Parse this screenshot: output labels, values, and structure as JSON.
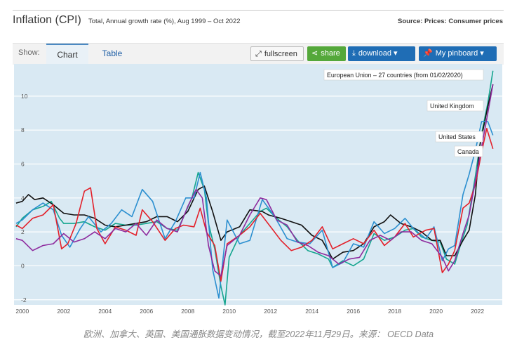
{
  "header": {
    "title": "Inflation (CPI)",
    "subtitle": "Total, Annual growth rate (%), Aug 1999 – Oct 2022",
    "source": "Source: Prices: Consumer prices"
  },
  "toolbar": {
    "show_label": "Show:",
    "tabs": [
      "Chart",
      "Table"
    ],
    "fullscreen_label": "fullscreen",
    "share_label": "share",
    "download_label": "download ▾",
    "pinboard_label": "My pinboard ▾"
  },
  "caption": "欧洲、加拿大、英国、美国通胀数据变动情况，截至2022年11月29日。来源： OECD Data",
  "colors": {
    "plot_bg": "#d9e9f3",
    "grid": "#ffffff",
    "eu": "#15a58f",
    "uk": "#111111",
    "us": "#2b8fd0",
    "canada": "#e3202a",
    "purple": "#8e2b9e"
  },
  "chart_data": {
    "type": "line",
    "x_ticks": [
      "2000",
      "2002",
      "2004",
      "2006",
      "2008",
      "2010",
      "2012",
      "2014",
      "2016",
      "2018",
      "2020",
      "2022"
    ],
    "y_ticks": [
      "-2",
      "0",
      "2",
      "4",
      "6",
      "8",
      "10"
    ],
    "xlim": [
      1999.6,
      2023.2
    ],
    "ylim": [
      -2.3,
      11.9
    ],
    "grid": true,
    "series": [
      {
        "name": "European Union – 27 countries (from 01/02/2020)",
        "color": "#15a58f",
        "x": [
          1999.7,
          2000.0,
          2000.5,
          2001.0,
          2001.4,
          2001.8,
          2002.0,
          2002.5,
          2003.0,
          2003.5,
          2004.0,
          2004.5,
          2005.0,
          2005.5,
          2006.0,
          2006.5,
          2007.0,
          2007.5,
          2007.8,
          2008.2,
          2008.5,
          2008.8,
          2009.0,
          2009.3,
          2009.6,
          2009.8,
          2010.0,
          2010.5,
          2011.0,
          2011.5,
          2011.8,
          2012.3,
          2012.8,
          2013.3,
          2013.8,
          2014.3,
          2014.8,
          2015.0,
          2015.5,
          2016.0,
          2016.5,
          2017.0,
          2017.5,
          2018.0,
          2018.5,
          2018.9,
          2019.3,
          2019.8,
          2020.2,
          2020.5,
          2020.9,
          2021.2,
          2021.5,
          2021.9,
          2022.2,
          2022.5,
          2022.75
        ],
        "y": [
          2.3,
          2.8,
          3.3,
          3.5,
          3.8,
          2.8,
          2.5,
          2.5,
          2.6,
          2.3,
          2.1,
          2.5,
          2.4,
          2.4,
          2.5,
          2.6,
          2.2,
          2.1,
          2.9,
          4.0,
          5.5,
          4.5,
          2.5,
          1.0,
          -1.2,
          -2.3,
          0.5,
          1.8,
          2.5,
          3.2,
          3.4,
          2.8,
          2.3,
          1.5,
          0.9,
          0.7,
          0.4,
          -0.1,
          0.3,
          0.0,
          0.4,
          1.9,
          1.5,
          1.7,
          2.1,
          2.2,
          1.7,
          1.5,
          1.4,
          0.4,
          0.1,
          1.3,
          2.4,
          5.3,
          7.8,
          9.6,
          11.5
        ]
      },
      {
        "name": "United Kingdom",
        "color": "#111111",
        "x": [
          1999.7,
          2000.0,
          2000.3,
          2000.6,
          2001.0,
          2001.5,
          2002.0,
          2002.5,
          2003.0,
          2003.5,
          2004.0,
          2004.5,
          2005.0,
          2005.5,
          2006.0,
          2006.5,
          2007.0,
          2007.5,
          2008.0,
          2008.5,
          2008.8,
          2009.2,
          2009.6,
          2009.9,
          2010.5,
          2011.0,
          2011.6,
          2011.9,
          2012.5,
          2013.0,
          2013.5,
          2014.0,
          2014.5,
          2015.0,
          2015.5,
          2016.0,
          2016.5,
          2017.0,
          2017.5,
          2017.8,
          2018.3,
          2018.8,
          2019.3,
          2019.8,
          2020.2,
          2020.5,
          2020.9,
          2021.3,
          2021.6,
          2021.9,
          2022.1,
          2022.5,
          2022.75
        ],
        "y": [
          3.7,
          3.8,
          4.2,
          3.9,
          4.0,
          3.6,
          3.1,
          3.0,
          3.0,
          2.8,
          2.4,
          2.3,
          2.4,
          2.5,
          2.6,
          2.9,
          2.9,
          2.6,
          3.2,
          4.5,
          4.7,
          3.2,
          1.5,
          2.0,
          2.3,
          3.3,
          3.2,
          3.0,
          2.8,
          2.6,
          2.4,
          1.8,
          1.5,
          0.4,
          0.8,
          0.9,
          1.3,
          2.3,
          2.6,
          3.0,
          2.5,
          2.3,
          2.0,
          1.5,
          1.5,
          0.6,
          0.6,
          1.5,
          2.1,
          4.2,
          7.0,
          9.4,
          10.7
        ]
      },
      {
        "name": "United States",
        "color": "#2b8fd0",
        "x": [
          1999.7,
          2000.0,
          2000.5,
          2001.0,
          2001.5,
          2001.9,
          2002.3,
          2002.8,
          2003.2,
          2003.8,
          2004.3,
          2004.8,
          2005.3,
          2005.8,
          2006.3,
          2006.9,
          2007.4,
          2007.9,
          2008.3,
          2008.6,
          2008.9,
          2009.2,
          2009.5,
          2009.9,
          2010.5,
          2011.0,
          2011.6,
          2012.2,
          2012.8,
          2013.3,
          2013.9,
          2014.5,
          2015.0,
          2015.5,
          2016.0,
          2016.5,
          2017.0,
          2017.5,
          2018.0,
          2018.5,
          2018.9,
          2019.5,
          2019.9,
          2020.3,
          2020.6,
          2020.9,
          2021.3,
          2021.6,
          2021.9,
          2022.2,
          2022.5,
          2022.75
        ],
        "y": [
          2.5,
          2.7,
          3.3,
          3.7,
          3.3,
          1.8,
          1.1,
          2.2,
          2.9,
          2.0,
          2.5,
          3.3,
          2.9,
          4.5,
          3.8,
          1.6,
          2.6,
          4.0,
          4.0,
          5.5,
          4.0,
          -0.2,
          -1.9,
          2.7,
          1.3,
          1.5,
          3.9,
          2.9,
          1.6,
          1.4,
          1.3,
          2.1,
          -0.1,
          0.2,
          1.3,
          1.1,
          2.6,
          1.9,
          2.2,
          2.8,
          2.2,
          1.6,
          2.3,
          0.3,
          1.0,
          1.2,
          4.2,
          5.4,
          6.8,
          8.5,
          8.5,
          7.7
        ]
      },
      {
        "name": "Canada",
        "color": "#e3202a",
        "x": [
          1999.7,
          2000.0,
          2000.5,
          2001.0,
          2001.5,
          2001.9,
          2002.2,
          2002.6,
          2003.0,
          2003.3,
          2003.6,
          2004.0,
          2004.5,
          2005.0,
          2005.5,
          2005.8,
          2006.3,
          2006.9,
          2007.4,
          2007.8,
          2008.3,
          2008.6,
          2008.9,
          2009.3,
          2009.6,
          2009.9,
          2010.5,
          2011.0,
          2011.5,
          2012.0,
          2012.5,
          2013.0,
          2013.5,
          2014.0,
          2014.5,
          2015.0,
          2015.5,
          2016.0,
          2016.5,
          2017.0,
          2017.5,
          2018.0,
          2018.5,
          2018.9,
          2019.5,
          2019.9,
          2020.3,
          2020.6,
          2020.9,
          2021.3,
          2021.6,
          2021.9,
          2022.2,
          2022.45,
          2022.75
        ],
        "y": [
          2.4,
          2.2,
          2.8,
          3.0,
          3.6,
          1.0,
          1.3,
          2.5,
          4.4,
          4.6,
          2.2,
          1.3,
          2.3,
          2.1,
          1.8,
          3.3,
          2.6,
          1.5,
          2.2,
          2.4,
          2.3,
          3.4,
          2.0,
          1.2,
          -0.9,
          1.3,
          1.8,
          2.3,
          3.1,
          2.3,
          1.5,
          0.9,
          1.1,
          1.5,
          2.3,
          1.0,
          1.3,
          1.6,
          1.3,
          2.1,
          1.2,
          1.7,
          2.5,
          1.7,
          2.1,
          2.2,
          -0.4,
          0.1,
          0.9,
          3.4,
          3.7,
          4.8,
          6.7,
          8.1,
          6.9
        ]
      },
      {
        "name": "",
        "color": "#8e2b9e",
        "x": [
          1999.7,
          2000.0,
          2000.5,
          2001.0,
          2001.5,
          2002.0,
          2002.5,
          2003.0,
          2003.5,
          2004.0,
          2004.5,
          2005.0,
          2005.5,
          2006.0,
          2006.5,
          2007.0,
          2007.5,
          2008.0,
          2008.4,
          2008.7,
          2009.0,
          2009.3,
          2009.6,
          2009.9,
          2010.5,
          2011.0,
          2011.5,
          2011.8,
          2012.3,
          2012.8,
          2013.3,
          2013.8,
          2014.3,
          2014.8,
          2015.3,
          2015.8,
          2016.3,
          2016.8,
          2017.3,
          2017.8,
          2018.3,
          2018.8,
          2019.3,
          2019.8,
          2020.3,
          2020.6,
          2020.9,
          2021.3,
          2021.6,
          2021.9,
          2022.2,
          2022.5,
          2022.75
        ],
        "y": [
          1.6,
          1.5,
          0.9,
          1.2,
          1.3,
          1.9,
          1.4,
          1.6,
          2.0,
          1.6,
          2.2,
          2.0,
          2.5,
          1.8,
          2.7,
          2.2,
          2.0,
          3.5,
          4.5,
          4.0,
          1.2,
          -0.3,
          -0.6,
          1.2,
          1.8,
          3.0,
          4.0,
          3.9,
          2.7,
          2.4,
          1.4,
          1.2,
          0.8,
          0.6,
          0.1,
          0.4,
          0.5,
          1.5,
          1.8,
          1.5,
          2.0,
          2.0,
          1.5,
          1.3,
          0.5,
          -0.3,
          0.3,
          1.9,
          3.0,
          5.0,
          7.0,
          9.0,
          10.7
        ]
      }
    ],
    "labels": [
      "European Union – 27 countries (from 01/02/2020)",
      "United Kingdom",
      "United States",
      "Canada"
    ]
  }
}
